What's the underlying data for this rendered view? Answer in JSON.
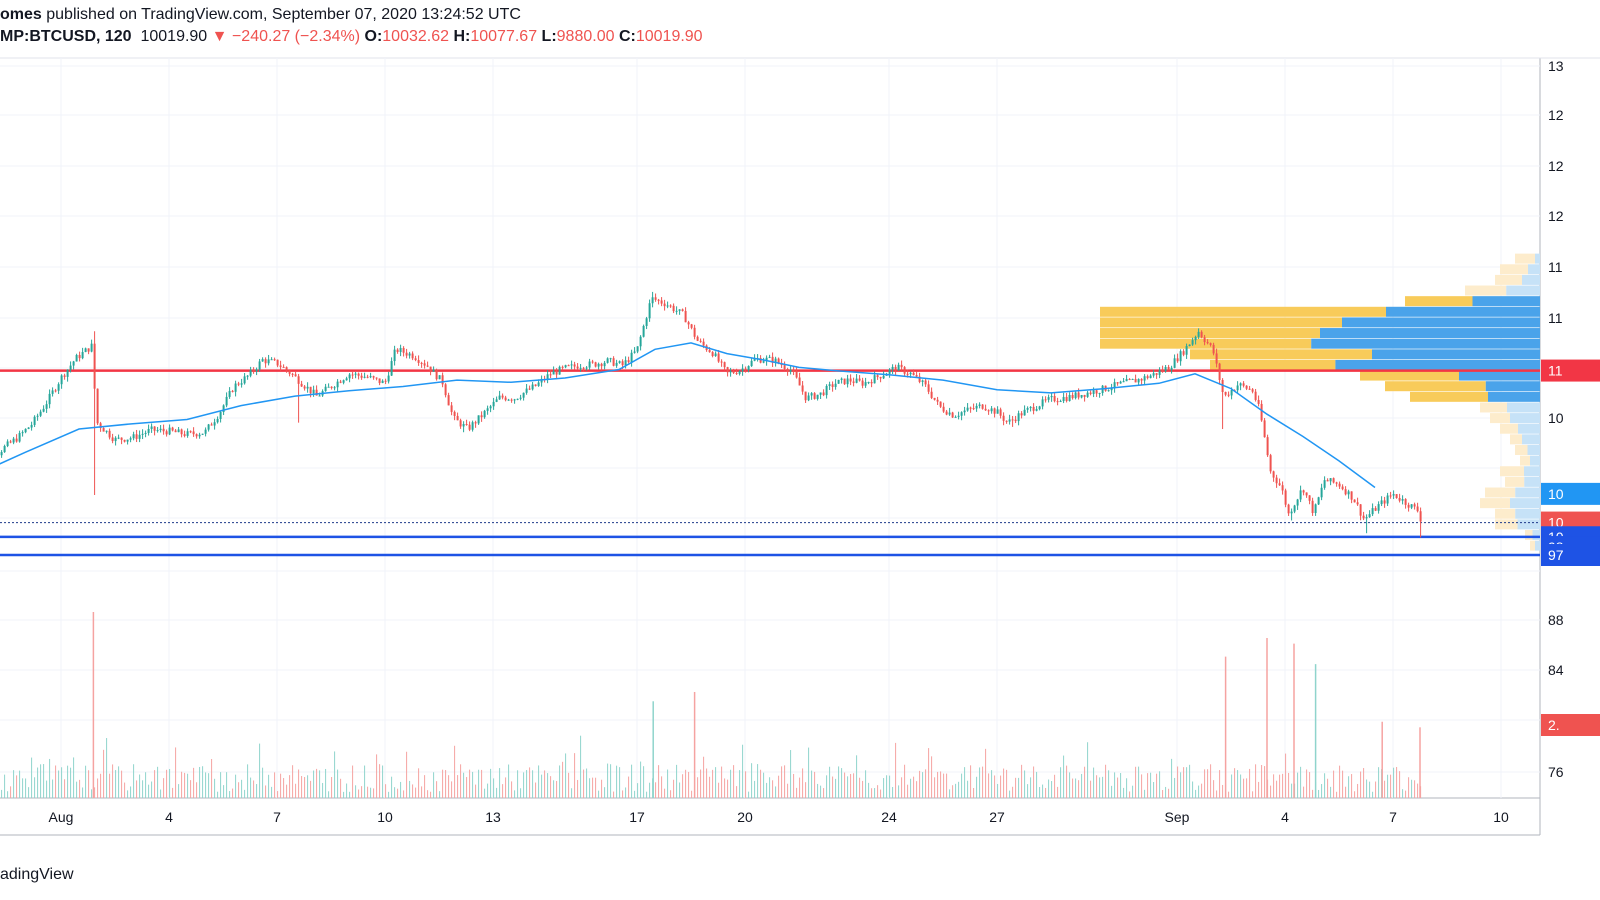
{
  "header": {
    "line1_publisher": "omes",
    "line1_rest": "published on TradingView.com, September 07, 2020 13:24:52 UTC",
    "symbol": "MP:BTCUSD, 120",
    "last": "10019.90",
    "change_arrow": "▼",
    "change": "−240.27 (−2.34%)",
    "o_label": "O:",
    "o_value": "10032.62",
    "h_label": "H:",
    "h_value": "10077.67",
    "l_label": "L:",
    "l_value": "9880.00",
    "c_label": "C:",
    "c_value": "10019.90"
  },
  "footer": {
    "brand": "adingView"
  },
  "colors": {
    "up": "#26a69a",
    "down": "#ef5350",
    "ma": "#2196f3",
    "resistance": "#f23645",
    "support": "#1e53e5",
    "vp_blue": "#4aa3ea",
    "vp_blue_light": "#c6e2f7",
    "vp_yellow": "#f8cb5a",
    "vp_yellow_light": "#fdeccc"
  },
  "chart_data": {
    "type": "candlestick",
    "symbol": "BTCUSD",
    "interval": "120",
    "x_ticks": [
      {
        "label": "Aug",
        "day": 32
      },
      {
        "label": "4",
        "day": 35
      },
      {
        "label": "7",
        "day": 38
      },
      {
        "label": "10",
        "day": 41
      },
      {
        "label": "13",
        "day": 44
      },
      {
        "label": "17",
        "day": 48
      },
      {
        "label": "20",
        "day": 51
      },
      {
        "label": "24",
        "day": 55
      },
      {
        "label": "27",
        "day": 58
      },
      {
        "label": "Sep",
        "day": 63
      },
      {
        "label": "4",
        "day": 66
      },
      {
        "label": "7",
        "day": 69
      },
      {
        "label": "10",
        "day": 72
      }
    ],
    "y_ticks": [
      "13",
      "12",
      "12",
      "12",
      "11",
      "11",
      "10",
      "10"
    ],
    "volume_ticks": [
      "88",
      "84",
      "76"
    ],
    "price_tags": [
      {
        "text": "11",
        "color": "#f23645",
        "price": 11450
      },
      {
        "text": "10",
        "color": "#2196f3",
        "price": 10290
      },
      {
        "text": "10",
        "color": "#ef5350",
        "price": 10020
      },
      {
        "text": "10",
        "color": "#1e53e5",
        "price": 9882
      },
      {
        "text": "98",
        "color": "#1e53e5",
        "price": 9790
      },
      {
        "text": "97",
        "color": "#1e53e5",
        "price": 9715
      }
    ],
    "volume_tag": {
      "text": "2.",
      "color": "#ef5350"
    },
    "price_range": [
      9720,
      12580
    ],
    "resistance": 11450,
    "support": [
      10020,
      9885,
      9715
    ],
    "ma_points": [
      [
        29.5,
        10450
      ],
      [
        31,
        10680
      ],
      [
        32.5,
        10900
      ],
      [
        34,
        10950
      ],
      [
        35.5,
        10990
      ],
      [
        37,
        11120
      ],
      [
        38.5,
        11210
      ],
      [
        40,
        11260
      ],
      [
        41.5,
        11300
      ],
      [
        43,
        11360
      ],
      [
        44.5,
        11340
      ],
      [
        46,
        11380
      ],
      [
        47.5,
        11460
      ],
      [
        48.5,
        11650
      ],
      [
        49.5,
        11710
      ],
      [
        50.5,
        11610
      ],
      [
        51.5,
        11550
      ],
      [
        52.5,
        11480
      ],
      [
        53.5,
        11450
      ],
      [
        55,
        11410
      ],
      [
        56.5,
        11360
      ],
      [
        58,
        11270
      ],
      [
        59.5,
        11240
      ],
      [
        61,
        11280
      ],
      [
        62.5,
        11330
      ],
      [
        63.5,
        11420
      ],
      [
        64.5,
        11280
      ],
      [
        65.5,
        11040
      ],
      [
        66.5,
        10830
      ],
      [
        67.5,
        10600
      ],
      [
        68.5,
        10350
      ]
    ],
    "volume_profile": [
      {
        "price": 12500,
        "vol": 25,
        "frac": 0.2
      },
      {
        "price": 12400,
        "vol": 40,
        "frac": 0.3
      },
      {
        "price": 12300,
        "vol": 45,
        "frac": 0.4
      },
      {
        "price": 12200,
        "vol": 75,
        "frac": 0.45
      },
      {
        "price": 12100,
        "vol": 135,
        "frac": 0.5
      },
      {
        "price": 12000,
        "vol": 440,
        "frac": 0.35
      },
      {
        "price": 11900,
        "vol": 440,
        "frac": 0.45
      },
      {
        "price": 11800,
        "vol": 440,
        "frac": 0.5
      },
      {
        "price": 11700,
        "vol": 440,
        "frac": 0.52
      },
      {
        "price": 11600,
        "vol": 350,
        "frac": 0.48
      },
      {
        "price": 11500,
        "vol": 330,
        "frac": 0.62
      },
      {
        "price": 11400,
        "vol": 180,
        "frac": 0.45
      },
      {
        "price": 11300,
        "vol": 155,
        "frac": 0.35
      },
      {
        "price": 11200,
        "vol": 130,
        "frac": 0.4
      },
      {
        "price": 11100,
        "vol": 60,
        "frac": 0.55
      },
      {
        "price": 11000,
        "vol": 50,
        "frac": 0.6
      },
      {
        "price": 10900,
        "vol": 40,
        "frac": 0.55
      },
      {
        "price": 10800,
        "vol": 30,
        "frac": 0.6
      },
      {
        "price": 10700,
        "vol": 25,
        "frac": 0.5
      },
      {
        "price": 10600,
        "vol": 20,
        "frac": 0.5
      },
      {
        "price": 10500,
        "vol": 40,
        "frac": 0.4
      },
      {
        "price": 10400,
        "vol": 35,
        "frac": 0.45
      },
      {
        "price": 10300,
        "vol": 55,
        "frac": 0.45
      },
      {
        "price": 10200,
        "vol": 60,
        "frac": 0.5
      },
      {
        "price": 10100,
        "vol": 45,
        "frac": 0.55
      },
      {
        "price": 10000,
        "vol": 45,
        "frac": 0.5
      },
      {
        "price": 9900,
        "vol": 15,
        "frac": 0.5
      },
      {
        "price": 9800,
        "vol": 10,
        "frac": 0.5
      }
    ],
    "volume_highlights": [
      {
        "day": 32.9,
        "value": 1.0,
        "dir": "down"
      },
      {
        "day": 48.45,
        "value": 0.52,
        "dir": "up"
      },
      {
        "day": 49.6,
        "value": 0.57,
        "dir": "down"
      },
      {
        "day": 64.35,
        "value": 0.76,
        "dir": "down"
      },
      {
        "day": 65.5,
        "value": 0.86,
        "dir": "down"
      },
      {
        "day": 66.25,
        "value": 0.83,
        "dir": "down"
      },
      {
        "day": 66.85,
        "value": 0.72,
        "dir": "up"
      },
      {
        "day": 68.7,
        "value": 0.41,
        "dir": "down"
      },
      {
        "day": 69.75,
        "value": 0.38,
        "dir": "down"
      }
    ],
    "candle_anchors": [
      [
        29.6,
        10520
      ],
      [
        30.0,
        10600
      ],
      [
        30.4,
        10720
      ],
      [
        30.8,
        10820
      ],
      [
        31.2,
        10950
      ],
      [
        31.6,
        11150
      ],
      [
        32.0,
        11380
      ],
      [
        32.4,
        11560
      ],
      [
        32.85,
        11680
      ],
      [
        33.0,
        10960
      ],
      [
        33.5,
        10800
      ],
      [
        34.0,
        10820
      ],
      [
        34.5,
        10890
      ],
      [
        35.0,
        10880
      ],
      [
        35.5,
        10850
      ],
      [
        36.0,
        10870
      ],
      [
        36.4,
        11050
      ],
      [
        36.8,
        11300
      ],
      [
        37.2,
        11400
      ],
      [
        37.6,
        11550
      ],
      [
        38.0,
        11520
      ],
      [
        38.4,
        11420
      ],
      [
        38.8,
        11300
      ],
      [
        39.1,
        11210
      ],
      [
        39.5,
        11300
      ],
      [
        40.0,
        11420
      ],
      [
        40.5,
        11390
      ],
      [
        41.0,
        11330
      ],
      [
        41.3,
        11650
      ],
      [
        41.8,
        11590
      ],
      [
        42.2,
        11490
      ],
      [
        42.6,
        11340
      ],
      [
        42.9,
        11000
      ],
      [
        43.3,
        10900
      ],
      [
        43.7,
        11030
      ],
      [
        44.2,
        11200
      ],
      [
        44.6,
        11190
      ],
      [
        44.9,
        11250
      ],
      [
        45.2,
        11310
      ],
      [
        45.6,
        11420
      ],
      [
        46.0,
        11470
      ],
      [
        46.4,
        11500
      ],
      [
        46.8,
        11510
      ],
      [
        47.2,
        11540
      ],
      [
        47.6,
        11500
      ],
      [
        48.0,
        11640
      ],
      [
        48.4,
        12130
      ],
      [
        48.8,
        12080
      ],
      [
        49.3,
        11970
      ],
      [
        49.7,
        11720
      ],
      [
        50.1,
        11620
      ],
      [
        50.5,
        11420
      ],
      [
        50.9,
        11460
      ],
      [
        51.3,
        11560
      ],
      [
        51.8,
        11550
      ],
      [
        52.3,
        11450
      ],
      [
        52.7,
        11190
      ],
      [
        53.1,
        11230
      ],
      [
        53.5,
        11330
      ],
      [
        53.9,
        11360
      ],
      [
        54.3,
        11330
      ],
      [
        54.8,
        11410
      ],
      [
        55.2,
        11480
      ],
      [
        55.6,
        11420
      ],
      [
        56.0,
        11310
      ],
      [
        56.4,
        11110
      ],
      [
        56.8,
        11030
      ],
      [
        57.2,
        11080
      ],
      [
        57.6,
        11120
      ],
      [
        58.0,
        11060
      ],
      [
        58.3,
        10960
      ],
      [
        58.7,
        11050
      ],
      [
        59.1,
        11120
      ],
      [
        59.5,
        11180
      ],
      [
        60.0,
        11200
      ],
      [
        60.5,
        11240
      ],
      [
        61.0,
        11280
      ],
      [
        61.5,
        11330
      ],
      [
        62.0,
        11370
      ],
      [
        62.4,
        11420
      ],
      [
        62.8,
        11490
      ],
      [
        63.2,
        11640
      ],
      [
        63.6,
        11820
      ],
      [
        64.0,
        11640
      ],
      [
        64.3,
        11200
      ],
      [
        64.7,
        11320
      ],
      [
        65.1,
        11260
      ],
      [
        65.3,
        11070
      ],
      [
        65.6,
        10500
      ],
      [
        65.9,
        10350
      ],
      [
        66.1,
        10100
      ],
      [
        66.5,
        10350
      ],
      [
        66.8,
        10110
      ],
      [
        67.1,
        10420
      ],
      [
        67.5,
        10380
      ],
      [
        67.9,
        10250
      ],
      [
        68.2,
        10050
      ],
      [
        68.6,
        10180
      ],
      [
        69.0,
        10290
      ],
      [
        69.4,
        10200
      ],
      [
        69.7,
        10130
      ],
      [
        69.8,
        10020
      ]
    ]
  }
}
